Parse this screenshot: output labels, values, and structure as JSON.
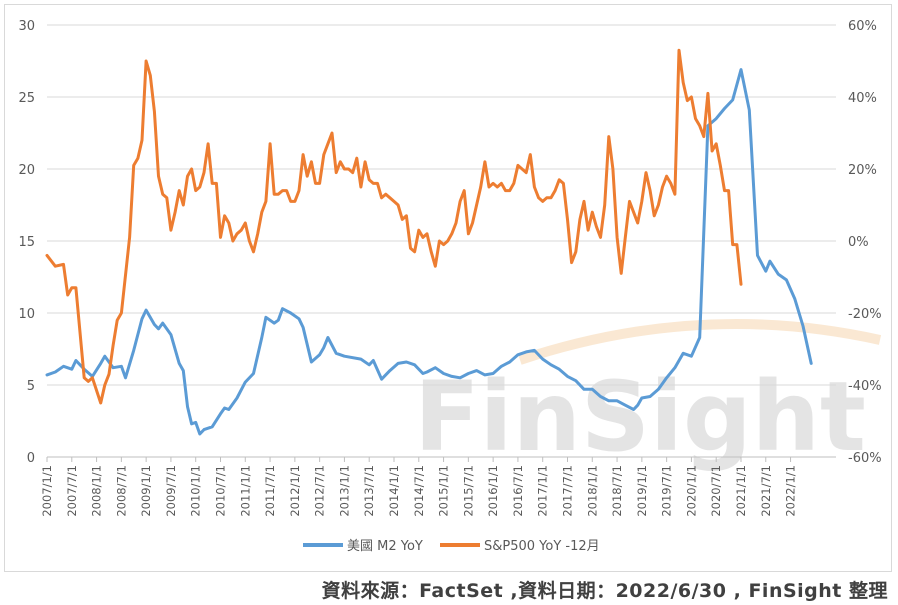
{
  "source_note": "資料來源：FactSet ,資料日期：2022/6/30 , FinSight 整理",
  "watermark": {
    "part1": "Fin",
    "part2": "Sight",
    "color_main": "#c8c8c8",
    "color_accent": "#f3c48a"
  },
  "colors": {
    "m2": "#5b9bd5",
    "sp500": "#ed7d31",
    "grid": "#d9d9d9",
    "axis": "#bfbfbf"
  },
  "chart_data": {
    "type": "line",
    "grid": true,
    "legend_position": "bottom",
    "left_axis": {
      "range": [
        0,
        30
      ],
      "ticks": [
        "0",
        "5",
        "10",
        "15",
        "20",
        "25",
        "30"
      ]
    },
    "right_axis": {
      "range": [
        -60,
        60
      ],
      "ticks": [
        "-60%",
        "-40%",
        "-20%",
        "0%",
        "20%",
        "40%",
        "60%"
      ]
    },
    "x_ticks": [
      "2007/1/1",
      "2007/7/1",
      "2008/1/1",
      "2008/7/1",
      "2009/1/1",
      "2009/7/1",
      "2010/1/1",
      "2010/7/1",
      "2011/1/1",
      "2011/7/1",
      "2012/1/1",
      "2012/7/1",
      "2013/1/1",
      "2013/7/1",
      "2014/1/1",
      "2014/7/1",
      "2015/1/1",
      "2015/7/1",
      "2016/1/1",
      "2016/7/1",
      "2017/1/1",
      "2017/7/1",
      "2018/1/1",
      "2018/7/1",
      "2019/1/1",
      "2019/7/1",
      "2020/1/1",
      "2020/7/1",
      "2021/1/1",
      "2021/7/1",
      "2022/1/1"
    ],
    "series": [
      {
        "name": "美國 M2 YoY",
        "axis": "left",
        "points": [
          [
            "2007/1",
            5.7
          ],
          [
            "2007/3",
            5.9
          ],
          [
            "2007/5",
            6.3
          ],
          [
            "2007/7",
            6.1
          ],
          [
            "2007/8",
            6.7
          ],
          [
            "2007/10",
            6.1
          ],
          [
            "2007/12",
            5.6
          ],
          [
            "2008/2",
            6.5
          ],
          [
            "2008/3",
            7.0
          ],
          [
            "2008/5",
            6.2
          ],
          [
            "2008/7",
            6.3
          ],
          [
            "2008/8",
            5.5
          ],
          [
            "2008/10",
            7.4
          ],
          [
            "2008/12",
            9.6
          ],
          [
            "2009/1",
            10.2
          ],
          [
            "2009/3",
            9.2
          ],
          [
            "2009/4",
            8.9
          ],
          [
            "2009/5",
            9.3
          ],
          [
            "2009/7",
            8.5
          ],
          [
            "2009/9",
            6.5
          ],
          [
            "2009/10",
            6.0
          ],
          [
            "2009/11",
            3.5
          ],
          [
            "2009/12",
            2.3
          ],
          [
            "2010/1",
            2.4
          ],
          [
            "2010/2",
            1.6
          ],
          [
            "2010/3",
            1.9
          ],
          [
            "2010/5",
            2.1
          ],
          [
            "2010/7",
            3.0
          ],
          [
            "2010/8",
            3.4
          ],
          [
            "2010/9",
            3.3
          ],
          [
            "2010/11",
            4.1
          ],
          [
            "2011/1",
            5.2
          ],
          [
            "2011/3",
            5.8
          ],
          [
            "2011/5",
            8.3
          ],
          [
            "2011/6",
            9.7
          ],
          [
            "2011/8",
            9.3
          ],
          [
            "2011/9",
            9.5
          ],
          [
            "2011/10",
            10.3
          ],
          [
            "2011/12",
            10.0
          ],
          [
            "2012/2",
            9.6
          ],
          [
            "2012/3",
            9.0
          ],
          [
            "2012/5",
            6.6
          ],
          [
            "2012/7",
            7.1
          ],
          [
            "2012/8",
            7.6
          ],
          [
            "2012/9",
            8.3
          ],
          [
            "2012/11",
            7.2
          ],
          [
            "2013/1",
            7.0
          ],
          [
            "2013/5",
            6.8
          ],
          [
            "2013/7",
            6.4
          ],
          [
            "2013/8",
            6.7
          ],
          [
            "2013/10",
            5.4
          ],
          [
            "2013/12",
            6.0
          ],
          [
            "2014/2",
            6.5
          ],
          [
            "2014/4",
            6.6
          ],
          [
            "2014/6",
            6.4
          ],
          [
            "2014/8",
            5.8
          ],
          [
            "2014/9",
            5.9
          ],
          [
            "2014/11",
            6.2
          ],
          [
            "2015/1",
            5.8
          ],
          [
            "2015/3",
            5.6
          ],
          [
            "2015/5",
            5.5
          ],
          [
            "2015/7",
            5.8
          ],
          [
            "2015/9",
            6.0
          ],
          [
            "2015/11",
            5.7
          ],
          [
            "2016/1",
            5.8
          ],
          [
            "2016/3",
            6.3
          ],
          [
            "2016/5",
            6.6
          ],
          [
            "2016/7",
            7.1
          ],
          [
            "2016/9",
            7.3
          ],
          [
            "2016/11",
            7.4
          ],
          [
            "2017/1",
            6.8
          ],
          [
            "2017/3",
            6.4
          ],
          [
            "2017/5",
            6.1
          ],
          [
            "2017/7",
            5.6
          ],
          [
            "2017/9",
            5.3
          ],
          [
            "2017/11",
            4.7
          ],
          [
            "2018/1",
            4.7
          ],
          [
            "2018/3",
            4.2
          ],
          [
            "2018/5",
            3.9
          ],
          [
            "2018/7",
            3.9
          ],
          [
            "2018/9",
            3.6
          ],
          [
            "2018/11",
            3.3
          ],
          [
            "2018/12",
            3.6
          ],
          [
            "2019/1",
            4.1
          ],
          [
            "2019/3",
            4.2
          ],
          [
            "2019/5",
            4.7
          ],
          [
            "2019/7",
            5.5
          ],
          [
            "2019/9",
            6.2
          ],
          [
            "2019/11",
            7.2
          ],
          [
            "2020/1",
            7.0
          ],
          [
            "2020/3",
            8.3
          ],
          [
            "2020/5",
            23.0
          ],
          [
            "2020/7",
            23.5
          ],
          [
            "2020/9",
            24.2
          ],
          [
            "2020/11",
            24.8
          ],
          [
            "2021/1",
            26.9
          ],
          [
            "2021/3",
            24.1
          ],
          [
            "2021/5",
            14.0
          ],
          [
            "2021/7",
            12.9
          ],
          [
            "2021/8",
            13.6
          ],
          [
            "2021/10",
            12.7
          ],
          [
            "2021/12",
            12.3
          ],
          [
            "2022/2",
            11.0
          ],
          [
            "2022/4",
            9.1
          ],
          [
            "2022/6",
            6.5
          ]
        ]
      },
      {
        "name": "S&P500 YoY -12月",
        "axis": "right",
        "points": [
          [
            "2007/1",
            -4.0
          ],
          [
            "2007/3",
            -7.0
          ],
          [
            "2007/5",
            -6.5
          ],
          [
            "2007/6",
            -15.0
          ],
          [
            "2007/7",
            -13.0
          ],
          [
            "2007/8",
            -13.0
          ],
          [
            "2007/10",
            -38.0
          ],
          [
            "2007/11",
            -39.0
          ],
          [
            "2007/12",
            -38.0
          ],
          [
            "2008/2",
            -45.0
          ],
          [
            "2008/3",
            -40.0
          ],
          [
            "2008/4",
            -37.0
          ],
          [
            "2008/5",
            -29.0
          ],
          [
            "2008/6",
            -22.0
          ],
          [
            "2008/7",
            -20.0
          ],
          [
            "2008/9",
            1.0
          ],
          [
            "2008/10",
            21.0
          ],
          [
            "2008/11",
            23.0
          ],
          [
            "2008/12",
            28.0
          ],
          [
            "2009/1",
            50.0
          ],
          [
            "2009/2",
            46.0
          ],
          [
            "2009/3",
            36.0
          ],
          [
            "2009/4",
            18.0
          ],
          [
            "2009/5",
            13.0
          ],
          [
            "2009/6",
            12.0
          ],
          [
            "2009/7",
            3.0
          ],
          [
            "2009/8",
            8.0
          ],
          [
            "2009/9",
            14.0
          ],
          [
            "2009/10",
            10.0
          ],
          [
            "2009/11",
            18.0
          ],
          [
            "2009/12",
            20.0
          ],
          [
            "2010/1",
            14.0
          ],
          [
            "2010/2",
            15.0
          ],
          [
            "2010/3",
            19.0
          ],
          [
            "2010/4",
            27.0
          ],
          [
            "2010/5",
            16.0
          ],
          [
            "2010/6",
            16.0
          ],
          [
            "2010/7",
            1.0
          ],
          [
            "2010/8",
            7.0
          ],
          [
            "2010/9",
            5.0
          ],
          [
            "2010/10",
            0.0
          ],
          [
            "2010/11",
            2.0
          ],
          [
            "2010/12",
            3.0
          ],
          [
            "2011/1",
            5.0
          ],
          [
            "2011/2",
            0.0
          ],
          [
            "2011/3",
            -3.0
          ],
          [
            "2011/4",
            2.0
          ],
          [
            "2011/5",
            8.0
          ],
          [
            "2011/6",
            11.0
          ],
          [
            "2011/7",
            27.0
          ],
          [
            "2011/8",
            13.0
          ],
          [
            "2011/9",
            13.0
          ],
          [
            "2011/10",
            14.0
          ],
          [
            "2011/11",
            14.0
          ],
          [
            "2011/12",
            11.0
          ],
          [
            "2012/1",
            11.0
          ],
          [
            "2012/2",
            14.0
          ],
          [
            "2012/3",
            24.0
          ],
          [
            "2012/4",
            18.0
          ],
          [
            "2012/5",
            22.0
          ],
          [
            "2012/6",
            16.0
          ],
          [
            "2012/7",
            16.0
          ],
          [
            "2012/8",
            24.0
          ],
          [
            "2012/9",
            27.0
          ],
          [
            "2012/10",
            30.0
          ],
          [
            "2012/11",
            19.0
          ],
          [
            "2012/12",
            22.0
          ],
          [
            "2013/1",
            20.0
          ],
          [
            "2013/2",
            20.0
          ],
          [
            "2013/3",
            19.0
          ],
          [
            "2013/4",
            23.0
          ],
          [
            "2013/5",
            15.0
          ],
          [
            "2013/6",
            22.0
          ],
          [
            "2013/7",
            17.0
          ],
          [
            "2013/8",
            16.0
          ],
          [
            "2013/9",
            16.0
          ],
          [
            "2013/10",
            12.0
          ],
          [
            "2013/11",
            13.0
          ],
          [
            "2013/12",
            12.0
          ],
          [
            "2014/1",
            11.0
          ],
          [
            "2014/2",
            10.0
          ],
          [
            "2014/3",
            6.0
          ],
          [
            "2014/4",
            7.0
          ],
          [
            "2014/5",
            -2.0
          ],
          [
            "2014/6",
            -3.0
          ],
          [
            "2014/7",
            3.0
          ],
          [
            "2014/8",
            1.0
          ],
          [
            "2014/9",
            2.0
          ],
          [
            "2014/10",
            -3.0
          ],
          [
            "2014/11",
            -7.0
          ],
          [
            "2014/12",
            0.0
          ],
          [
            "2015/1",
            -1.0
          ],
          [
            "2015/2",
            0.0
          ],
          [
            "2015/3",
            2.0
          ],
          [
            "2015/4",
            5.0
          ],
          [
            "2015/5",
            11.0
          ],
          [
            "2015/6",
            14.0
          ],
          [
            "2015/7",
            2.0
          ],
          [
            "2015/8",
            5.0
          ],
          [
            "2015/9",
            10.0
          ],
          [
            "2015/10",
            15.0
          ],
          [
            "2015/11",
            22.0
          ],
          [
            "2015/12",
            15.0
          ],
          [
            "2016/1",
            16.0
          ],
          [
            "2016/2",
            15.0
          ],
          [
            "2016/3",
            16.0
          ],
          [
            "2016/4",
            14.0
          ],
          [
            "2016/5",
            14.0
          ],
          [
            "2016/6",
            16.0
          ],
          [
            "2016/7",
            21.0
          ],
          [
            "2016/8",
            20.0
          ],
          [
            "2016/9",
            19.0
          ],
          [
            "2016/10",
            24.0
          ],
          [
            "2016/11",
            15.0
          ],
          [
            "2016/12",
            12.0
          ],
          [
            "2017/1",
            11.0
          ],
          [
            "2017/2",
            12.0
          ],
          [
            "2017/3",
            12.0
          ],
          [
            "2017/4",
            14.0
          ],
          [
            "2017/5",
            17.0
          ],
          [
            "2017/6",
            16.0
          ],
          [
            "2017/7",
            6.0
          ],
          [
            "2017/8",
            -6.0
          ],
          [
            "2017/9",
            -3.0
          ],
          [
            "2017/10",
            6.0
          ],
          [
            "2017/11",
            11.0
          ],
          [
            "2017/12",
            3.0
          ],
          [
            "2018/1",
            8.0
          ],
          [
            "2018/2",
            4.0
          ],
          [
            "2018/3",
            1.0
          ],
          [
            "2018/4",
            10.0
          ],
          [
            "2018/5",
            29.0
          ],
          [
            "2018/6",
            20.0
          ],
          [
            "2018/7",
            1.0
          ],
          [
            "2018/8",
            -9.0
          ],
          [
            "2018/9",
            1.0
          ],
          [
            "2018/10",
            11.0
          ],
          [
            "2018/11",
            8.0
          ],
          [
            "2018/12",
            5.0
          ],
          [
            "2019/1",
            11.0
          ],
          [
            "2019/2",
            19.0
          ],
          [
            "2019/3",
            14.0
          ],
          [
            "2019/4",
            7.0
          ],
          [
            "2019/5",
            10.0
          ],
          [
            "2019/6",
            15.0
          ],
          [
            "2019/7",
            18.0
          ],
          [
            "2019/8",
            16.0
          ],
          [
            "2019/9",
            13.0
          ],
          [
            "2019/10",
            53.0
          ],
          [
            "2019/11",
            44.0
          ],
          [
            "2019/12",
            39.0
          ],
          [
            "2020/1",
            40.0
          ],
          [
            "2020/2",
            34.0
          ],
          [
            "2020/3",
            32.0
          ],
          [
            "2020/4",
            29.0
          ],
          [
            "2020/5",
            41.0
          ],
          [
            "2020/6",
            25.0
          ],
          [
            "2020/7",
            27.0
          ],
          [
            "2020/8",
            21.0
          ],
          [
            "2020/9",
            14.0
          ],
          [
            "2020/10",
            14.0
          ],
          [
            "2020/11",
            -1.0
          ],
          [
            "2020/12",
            -1.0
          ],
          [
            "2021/1",
            -12.0
          ]
        ]
      }
    ]
  }
}
